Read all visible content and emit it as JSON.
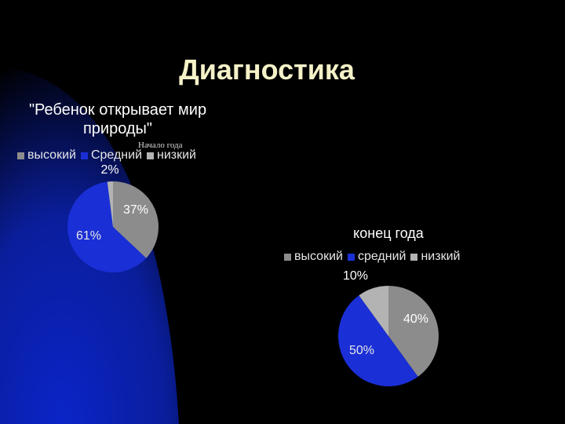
{
  "slide": {
    "title": "Диагностика"
  },
  "colors": {
    "high": "#8c8c8c",
    "medium": "#1a2fd6",
    "low": "#b3b3b3",
    "background": "#000000",
    "swoosh": "#0b24c8",
    "title": "#f5f2c8"
  },
  "chart_data": [
    {
      "type": "pie",
      "title": "\"Ребенок открывает мир природы\"",
      "note": "Начало года",
      "legend": [
        "высокий",
        "Средний",
        "низкий"
      ],
      "values": [
        37,
        61,
        2
      ],
      "labels": [
        "37%",
        "61%",
        "2%"
      ]
    },
    {
      "type": "pie",
      "title": "конец года",
      "legend": [
        "высокий",
        "средний",
        "низкий"
      ],
      "values": [
        40,
        50,
        10
      ],
      "labels": [
        "40%",
        "50%",
        "10%"
      ]
    }
  ]
}
